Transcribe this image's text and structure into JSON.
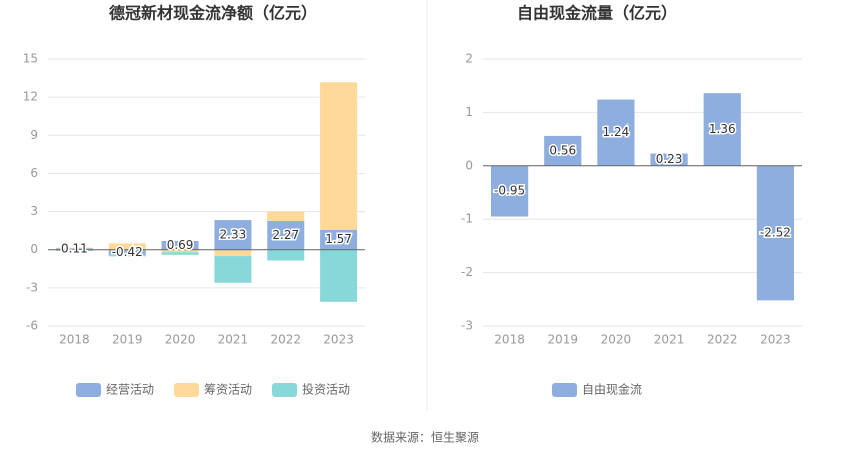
{
  "chart_data": [
    {
      "type": "bar",
      "stacked": true,
      "title": "德冠新材现金流净额（亿元）",
      "categories": [
        "2018",
        "2019",
        "2020",
        "2021",
        "2022",
        "2023"
      ],
      "series": [
        {
          "name": "经营活动",
          "color": "#8eaee0",
          "values": [
            0.11,
            -0.42,
            0.69,
            2.33,
            2.27,
            1.57
          ],
          "show_labels": true
        },
        {
          "name": "筹资活动",
          "color": "#ffd99a",
          "values": [
            0.05,
            0.5,
            -0.2,
            -0.5,
            0.75,
            11.6
          ]
        },
        {
          "name": "投资活动",
          "color": "#88d8da",
          "values": [
            -0.1,
            -0.1,
            -0.2,
            -2.1,
            -0.85,
            -4.1
          ]
        }
      ],
      "ylim": [
        -6,
        15
      ],
      "yticks": [
        -6,
        -3,
        0,
        3,
        6,
        9,
        12,
        15
      ],
      "grid": true
    },
    {
      "type": "bar",
      "stacked": false,
      "title": "自由现金流量（亿元）",
      "categories": [
        "2018",
        "2019",
        "2020",
        "2021",
        "2022",
        "2023"
      ],
      "series": [
        {
          "name": "自由现金流",
          "color": "#8eaee0",
          "values": [
            -0.95,
            0.56,
            1.24,
            0.23,
            1.36,
            -2.52
          ],
          "show_labels": true
        }
      ],
      "ylim": [
        -3,
        2
      ],
      "yticks": [
        -3,
        -2,
        -1,
        0,
        1,
        2
      ],
      "grid": true
    }
  ],
  "source": "数据来源：恒生聚源"
}
